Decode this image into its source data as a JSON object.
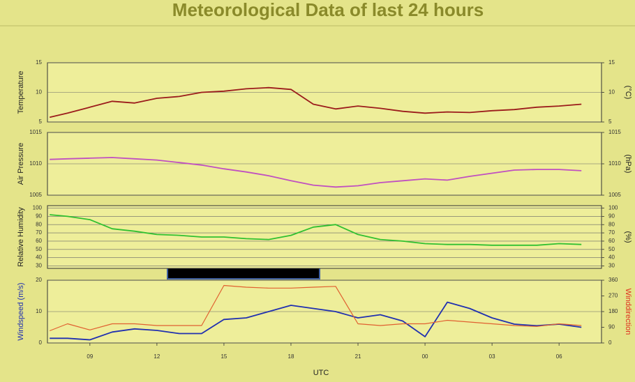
{
  "title": "Meteorological Data of last 24 hours",
  "xlabel": "UTC",
  "chart_data": [
    {
      "type": "line",
      "ylabel": "Temperature",
      "y2label": "(°C)",
      "x": [
        7.2,
        8,
        9,
        10,
        11,
        12,
        13,
        14,
        15,
        16,
        17,
        18,
        19,
        20,
        21,
        22,
        23,
        24,
        25,
        26,
        27,
        28,
        29,
        30,
        31
      ],
      "xlim": [
        7.1,
        31.9
      ],
      "ylim": [
        5,
        15
      ],
      "yticks": [
        5,
        10,
        15
      ],
      "y2lim": [
        5,
        15
      ],
      "y2ticks": [
        5,
        10,
        15
      ],
      "grid": true,
      "series": [
        {
          "name": "Temperature",
          "color": "#9b1b1b",
          "values": [
            5.8,
            6.5,
            7.5,
            8.5,
            8.2,
            9,
            9.3,
            10,
            10.2,
            10.6,
            10.8,
            10.5,
            8,
            7.2,
            7.7,
            7.3,
            6.8,
            6.5,
            6.7,
            6.6,
            6.9,
            7.1,
            7.5,
            7.7,
            8
          ]
        }
      ]
    },
    {
      "type": "line",
      "ylabel": "Air Pressure",
      "y2label": "(hPa)",
      "x": [
        7.2,
        8,
        9,
        10,
        11,
        12,
        13,
        14,
        15,
        16,
        17,
        18,
        19,
        20,
        21,
        22,
        23,
        24,
        25,
        26,
        27,
        28,
        29,
        30,
        31
      ],
      "xlim": [
        7.1,
        31.9
      ],
      "ylim": [
        1005,
        1015
      ],
      "yticks": [
        1005,
        1010,
        1015
      ],
      "y2lim": [
        1005,
        1015
      ],
      "y2ticks": [
        1005,
        1010,
        1015
      ],
      "grid": true,
      "series": [
        {
          "name": "Air Pressure",
          "color": "#c050c0",
          "values": [
            1010.7,
            1010.8,
            1010.9,
            1011,
            1010.8,
            1010.6,
            1010.2,
            1009.8,
            1009.2,
            1008.7,
            1008.1,
            1007.3,
            1006.6,
            1006.3,
            1006.5,
            1007,
            1007.3,
            1007.6,
            1007.4,
            1008,
            1008.5,
            1009,
            1009.1,
            1009.1,
            1008.9
          ]
        }
      ]
    },
    {
      "type": "line",
      "ylabel": "Relative Humidity",
      "y2label": "(%)",
      "x": [
        7.2,
        8,
        9,
        10,
        11,
        12,
        13,
        14,
        15,
        16,
        17,
        18,
        19,
        20,
        21,
        22,
        23,
        24,
        25,
        26,
        27,
        28,
        29,
        30,
        31
      ],
      "xlim": [
        7.1,
        31.9
      ],
      "ylim": [
        27,
        103
      ],
      "yticks": [
        30,
        40,
        50,
        60,
        70,
        80,
        90,
        100
      ],
      "y2lim": [
        27,
        103
      ],
      "y2ticks": [
        30,
        40,
        50,
        60,
        70,
        80,
        90,
        100
      ],
      "grid": true,
      "series": [
        {
          "name": "Relative Humidity",
          "color": "#30c030",
          "values": [
            92,
            90,
            86,
            75,
            72,
            68,
            67,
            65,
            65,
            63,
            62,
            67,
            77,
            80,
            68,
            62,
            60,
            57,
            56,
            56,
            55,
            55,
            55,
            57,
            56
          ]
        }
      ]
    },
    {
      "type": "line",
      "ylabel": "Windspeed (m/s)",
      "y2label": "Winddirection",
      "x": [
        7.2,
        8,
        9,
        10,
        11,
        12,
        13,
        14,
        15,
        16,
        17,
        18,
        19,
        20,
        21,
        22,
        23,
        24,
        25,
        26,
        27,
        28,
        29,
        30,
        31
      ],
      "xlim": [
        7.1,
        31.9
      ],
      "xticks": [
        {
          "value": 9,
          "label": "09"
        },
        12,
        15,
        18,
        21,
        {
          "value": 24,
          "label": "00"
        },
        {
          "value": 27,
          "label": "03"
        },
        {
          "value": 30,
          "label": "06"
        }
      ],
      "ylim": [
        0,
        20
      ],
      "yticks": [
        0,
        10,
        20
      ],
      "y2lim": [
        0,
        360
      ],
      "y2ticks": [
        0,
        90,
        180,
        270,
        360
      ],
      "grid": true,
      "series": [
        {
          "name": "Windspeed",
          "color": "#2030b0",
          "values": [
            1.5,
            1.5,
            1,
            3.5,
            4.5,
            4,
            3,
            3,
            7.5,
            8,
            10,
            12,
            11,
            10,
            8,
            9,
            7,
            2,
            13,
            11,
            8,
            6,
            5.5,
            6,
            5
          ]
        },
        {
          "name": "Winddirection",
          "color": "#e06030",
          "axis": "y2",
          "values": [
            70,
            110,
            75,
            110,
            110,
            100,
            100,
            100,
            330,
            320,
            315,
            315,
            320,
            325,
            110,
            100,
            110,
            110,
            130,
            120,
            110,
            100,
            95,
            110,
            100
          ]
        }
      ]
    }
  ]
}
